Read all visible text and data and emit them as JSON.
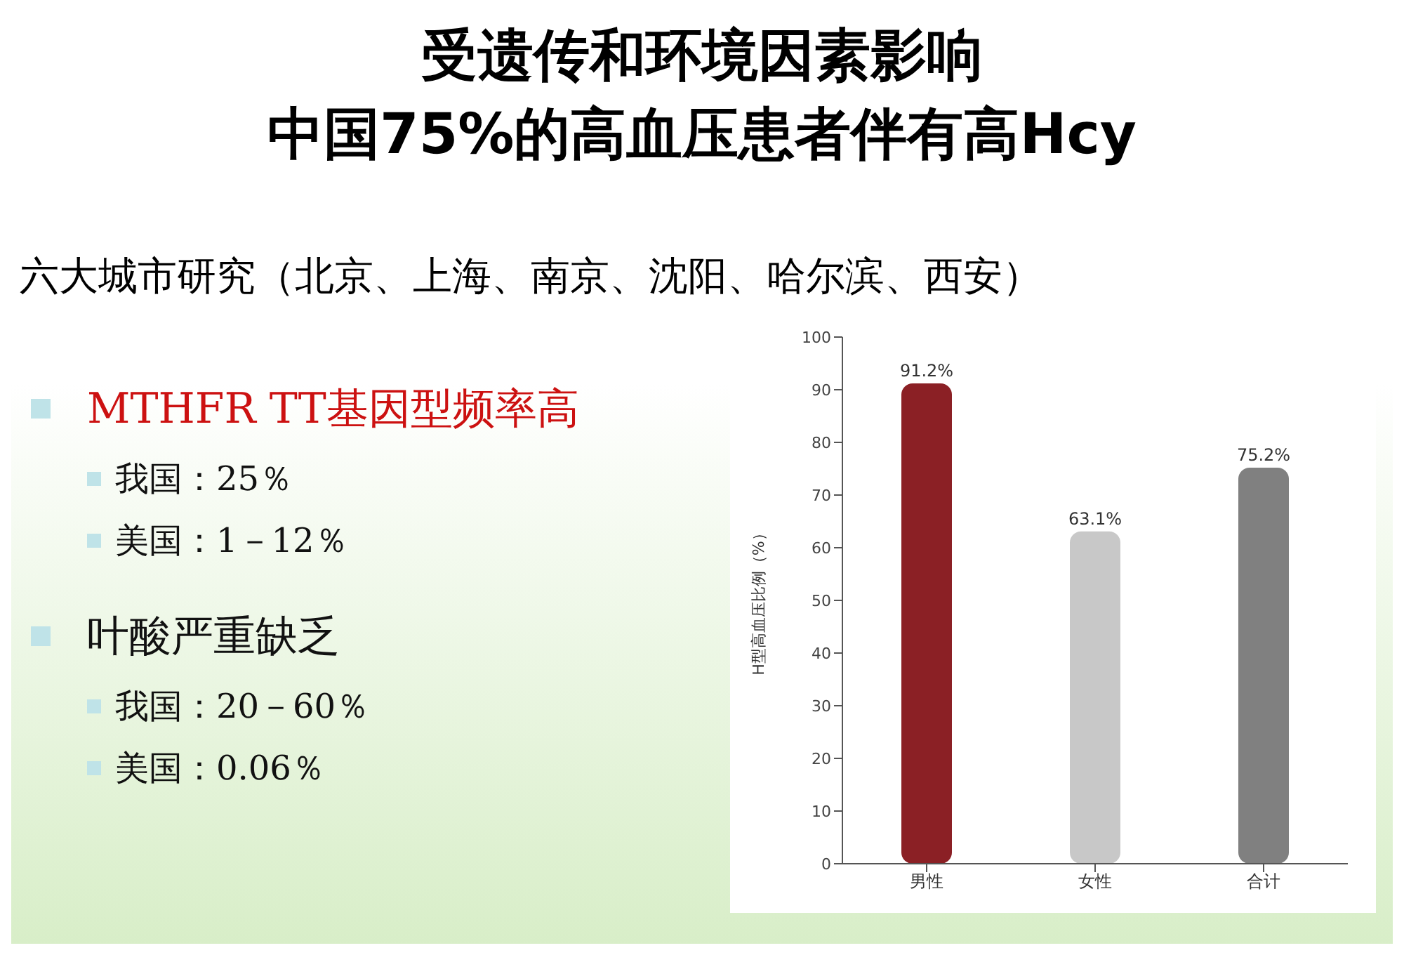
{
  "chart_data": {
    "type": "bar",
    "title": "受遗传和环境因素影响",
    "subtitle": "中国75%的高血压患者伴有高Hcy",
    "ylabel": "H型高血压比例（%）",
    "categories": [
      "男性",
      "女性",
      "合计"
    ],
    "values": [
      91.2,
      63.1,
      75.2
    ],
    "colors": [
      "#8b2025",
      "#c8c8c8",
      "#808080"
    ],
    "value_labels": [
      "91.2%",
      "63.1%",
      "75.2%"
    ],
    "ylim": [
      0,
      100
    ],
    "yticks": [
      0,
      10,
      20,
      30,
      40,
      50,
      60,
      70,
      80,
      90,
      100
    ],
    "grid": false,
    "annotations": [
      "六大城市研究（北京、上海、南京、沈阳、哈尔滨、西安）",
      "MTHFR TT基因型频率高",
      "我国：25％",
      "美国：1－12％",
      "叶酸严重缺乏",
      "我国：20－60％",
      "美国：0.06％"
    ]
  }
}
